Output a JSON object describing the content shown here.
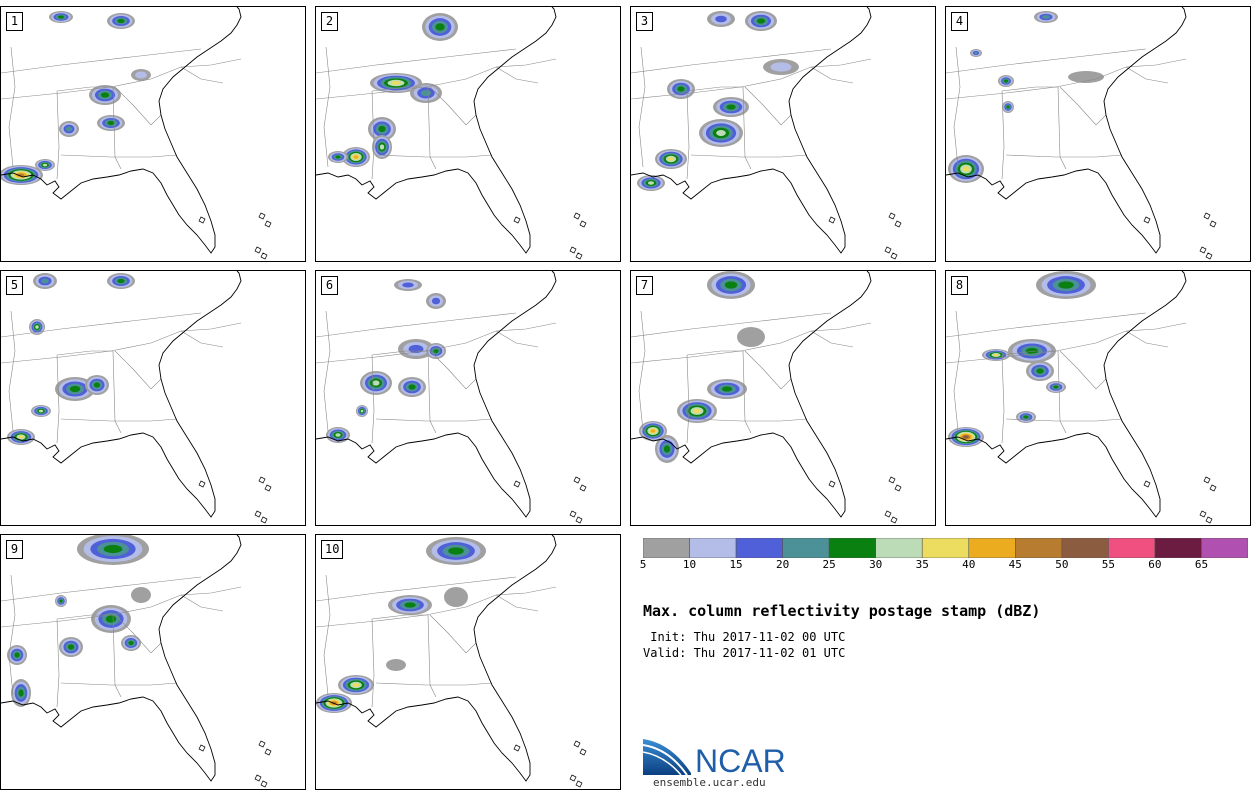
{
  "figure": {
    "title": "Max. column reflectivity postage stamp (dBZ)",
    "init_label": " Init:",
    "init_value": "Thu 2017-11-02 00 UTC",
    "valid_label": "Valid:",
    "valid_value": "Thu 2017-11-02 01 UTC"
  },
  "members": [
    "1",
    "2",
    "3",
    "4",
    "5",
    "6",
    "7",
    "8",
    "9",
    "10"
  ],
  "colorbar": {
    "colors": [
      "#a0a0a0",
      "#b4bce8",
      "#5060d8",
      "#4c9098",
      "#0a8010",
      "#bcdcb8",
      "#ecdc60",
      "#ecac20",
      "#b87c30",
      "#8c5c40",
      "#f05080",
      "#6c1c40",
      "#b050b0"
    ],
    "tick_labels": [
      "5",
      "10",
      "15",
      "20",
      "25",
      "30",
      "35",
      "40",
      "45",
      "50",
      "55",
      "60",
      "65"
    ]
  },
  "logo": {
    "text": "NCAR",
    "url_text": "ensemble.ucar.edu",
    "brand_color": "#1f5ea8"
  },
  "map": {
    "region": "Southeastern United States",
    "border_color": "#000000",
    "state_line_color": "#888888"
  }
}
